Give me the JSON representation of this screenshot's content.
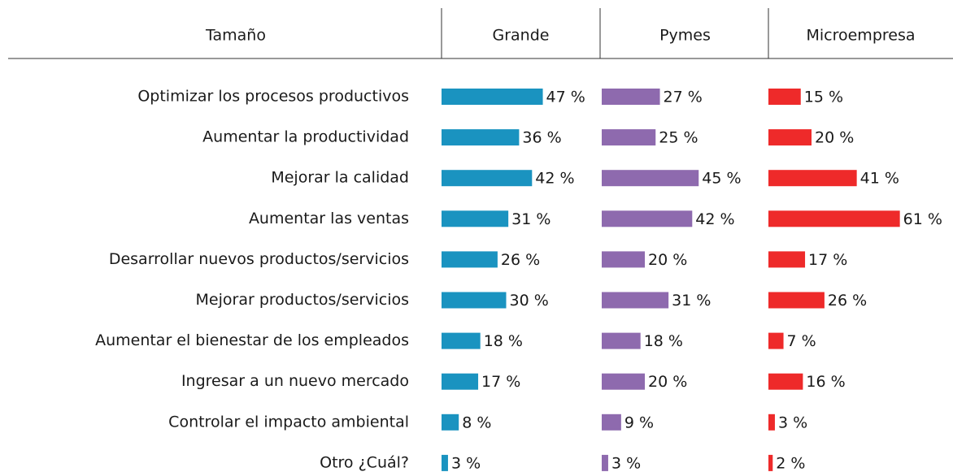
{
  "chart_data": {
    "type": "bar",
    "category_header": "Tamaño",
    "categories": [
      "Optimizar los procesos productivos",
      "Aumentar la productividad",
      "Mejorar la calidad",
      "Aumentar las ventas",
      "Desarrollar nuevos productos/servicios",
      "Mejorar productos/servicios",
      "Aumentar el bienestar de los empleados",
      "Ingresar a un nuevo mercado",
      "Controlar el impacto ambiental",
      "Otro ¿Cuál?"
    ],
    "series": [
      {
        "name": "Grande",
        "color": "#1a93c0",
        "values": [
          47,
          36,
          42,
          31,
          26,
          30,
          18,
          17,
          8,
          3
        ],
        "value_labels": [
          "47 %",
          "36 %",
          "42 %",
          "31 %",
          "26 %",
          "30 %",
          "18 %",
          "17 %",
          "8 %",
          "3 %"
        ]
      },
      {
        "name": "Pymes",
        "color": "#8e6aae",
        "values": [
          27,
          25,
          45,
          42,
          20,
          31,
          18,
          20,
          9,
          3
        ],
        "value_labels": [
          "27 %",
          "25 %",
          "45 %",
          "42 %",
          "20 %",
          "31 %",
          "18 %",
          "20 %",
          "9 %",
          "3 %"
        ]
      },
      {
        "name": "Microempresa",
        "color": "#ee2a2a",
        "values": [
          15,
          20,
          41,
          61,
          17,
          26,
          7,
          16,
          3,
          2
        ],
        "value_labels": [
          "15 %",
          "20 %",
          "41 %",
          "61 %",
          "17 %",
          "26 %",
          "7 %",
          "16 %",
          "3 %",
          "2 %"
        ]
      }
    ]
  }
}
